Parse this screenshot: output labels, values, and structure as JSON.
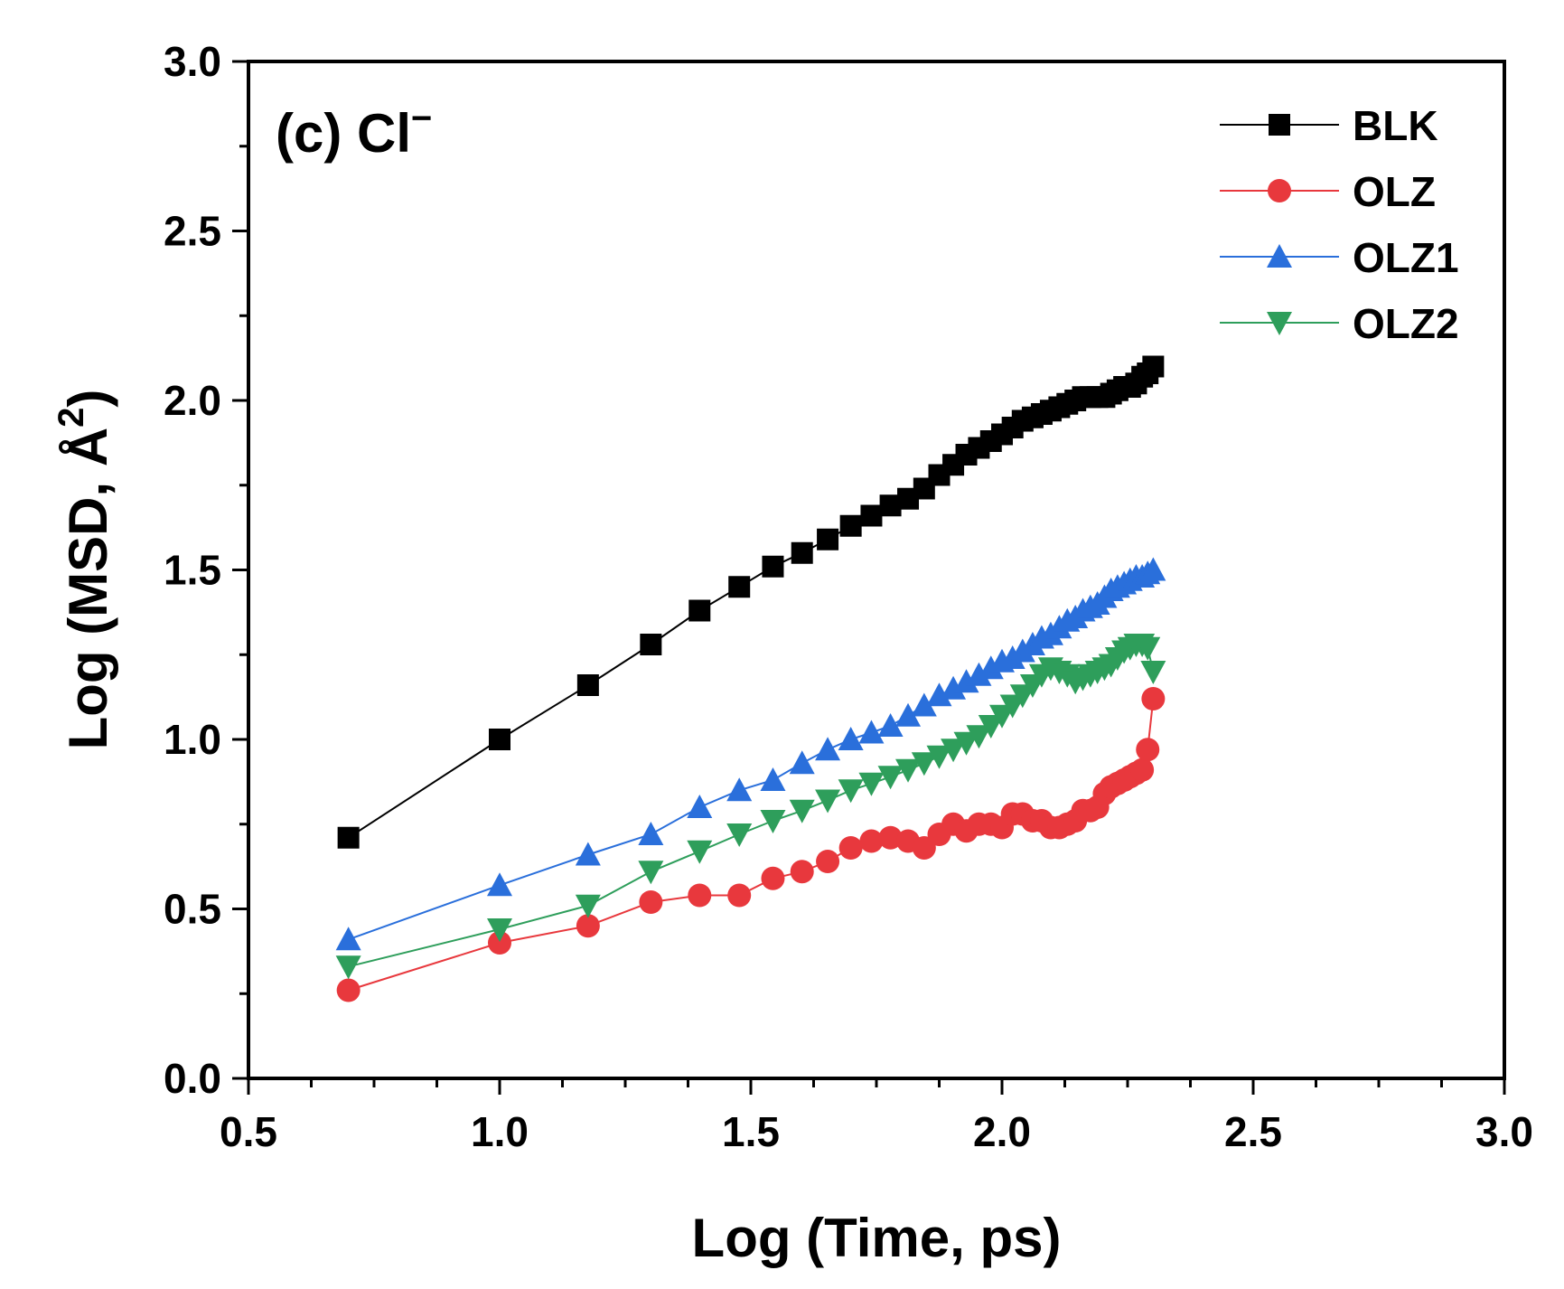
{
  "chart_data": {
    "type": "line",
    "title": "(c) Cl",
    "title_superscript": "−",
    "xlabel": "Log (Time, ps)",
    "ylabel_main": "Log (MSD, Å",
    "ylabel_sup": "2",
    "ylabel_close": ")",
    "xlim": [
      0.5,
      3.0
    ],
    "ylim": [
      0.0,
      3.0
    ],
    "xticks": [
      0.5,
      1.0,
      1.5,
      2.0,
      2.5,
      3.0
    ],
    "yticks": [
      0.0,
      0.5,
      1.0,
      1.5,
      2.0,
      2.5,
      3.0
    ],
    "xtick_labels": [
      "0.5",
      "1.0",
      "1.5",
      "2.0",
      "2.5",
      "3.0"
    ],
    "ytick_labels": [
      "0.0",
      "0.5",
      "1.0",
      "1.5",
      "2.0",
      "2.5",
      "3.0"
    ],
    "legend_position": "top-right",
    "x": [
      0.699,
      1.0,
      1.176,
      1.301,
      1.398,
      1.477,
      1.544,
      1.602,
      1.653,
      1.699,
      1.74,
      1.778,
      1.813,
      1.845,
      1.875,
      1.903,
      1.929,
      1.954,
      1.978,
      2.0,
      2.021,
      2.041,
      2.061,
      2.079,
      2.097,
      2.114,
      2.13,
      2.146,
      2.161,
      2.176,
      2.19,
      2.204,
      2.217,
      2.23,
      2.243,
      2.255,
      2.267,
      2.279,
      2.29,
      2.301
    ],
    "series": [
      {
        "name": "BLK",
        "marker": "square",
        "color": "#000000",
        "values": [
          0.71,
          1.0,
          1.16,
          1.28,
          1.38,
          1.45,
          1.51,
          1.55,
          1.59,
          1.63,
          1.66,
          1.69,
          1.71,
          1.74,
          1.78,
          1.81,
          1.84,
          1.86,
          1.88,
          1.9,
          1.92,
          1.94,
          1.95,
          1.96,
          1.97,
          1.98,
          1.99,
          2.0,
          2.01,
          2.01,
          2.01,
          2.01,
          2.02,
          2.03,
          2.04,
          2.04,
          2.05,
          2.07,
          2.08,
          2.1
        ]
      },
      {
        "name": "OLZ",
        "marker": "circle",
        "color": "#e8383d",
        "values": [
          0.26,
          0.4,
          0.45,
          0.52,
          0.54,
          0.54,
          0.59,
          0.61,
          0.64,
          0.68,
          0.7,
          0.71,
          0.7,
          0.68,
          0.72,
          0.75,
          0.73,
          0.75,
          0.75,
          0.74,
          0.78,
          0.78,
          0.76,
          0.76,
          0.74,
          0.74,
          0.75,
          0.76,
          0.79,
          0.79,
          0.8,
          0.84,
          0.86,
          0.87,
          0.88,
          0.89,
          0.9,
          0.91,
          0.97,
          1.12
        ]
      },
      {
        "name": "OLZ1",
        "marker": "triangle-up",
        "color": "#2a6fdb",
        "values": [
          0.41,
          0.57,
          0.66,
          0.72,
          0.8,
          0.85,
          0.88,
          0.93,
          0.97,
          1.0,
          1.02,
          1.04,
          1.07,
          1.1,
          1.13,
          1.15,
          1.17,
          1.19,
          1.21,
          1.23,
          1.24,
          1.26,
          1.28,
          1.3,
          1.31,
          1.33,
          1.35,
          1.36,
          1.38,
          1.39,
          1.4,
          1.42,
          1.44,
          1.45,
          1.46,
          1.47,
          1.48,
          1.48,
          1.49,
          1.5
        ]
      },
      {
        "name": "OLZ2",
        "marker": "triangle-down",
        "color": "#2e9e5b",
        "values": [
          0.33,
          0.44,
          0.51,
          0.61,
          0.67,
          0.72,
          0.76,
          0.79,
          0.82,
          0.85,
          0.87,
          0.89,
          0.91,
          0.93,
          0.95,
          0.97,
          0.99,
          1.01,
          1.04,
          1.07,
          1.1,
          1.13,
          1.16,
          1.19,
          1.21,
          1.2,
          1.19,
          1.17,
          1.18,
          1.19,
          1.2,
          1.21,
          1.22,
          1.24,
          1.26,
          1.27,
          1.28,
          1.28,
          1.27,
          1.2
        ]
      }
    ]
  }
}
